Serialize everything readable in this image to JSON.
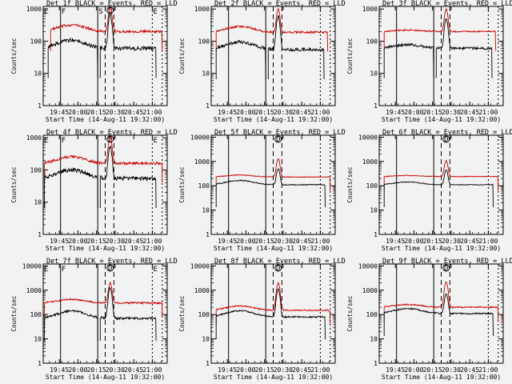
{
  "chart_data": [
    {
      "type": "line",
      "title": "Det 1f BLACK = Events, RED = LLD",
      "xlabel": "Start Time (14-Aug-11 19:32:00)",
      "ylabel": "Counts/sec",
      "yscale": "log",
      "ylim": [
        1,
        1200
      ],
      "yticks": [
        "1",
        "10",
        "100",
        "1000"
      ],
      "xticks": [
        "19:45",
        "20:00",
        "20:15",
        "20:30",
        "20:45",
        "21:00"
      ],
      "xlim": [
        "19:32",
        "21:12"
      ],
      "markers": [
        {
          "label": "E",
          "time": "19:32"
        },
        {
          "label": "F",
          "time": "19:46"
        },
        {
          "label": "S",
          "time": "20:16"
        },
        {
          "label": "",
          "time": "20:22"
        },
        {
          "label": "",
          "time": "20:29"
        },
        {
          "label": "E",
          "time": "21:00"
        },
        {
          "label": "",
          "time": "21:08"
        }
      ],
      "flare_label": "D",
      "flare_time": "20:26",
      "series": [
        {
          "color": "#cc0000",
          "base": 200,
          "bump": 1.6,
          "flare": 1100,
          "noise": 0.08,
          "segments": [
            [
              "19:38",
              "21:08"
            ]
          ]
        },
        {
          "color": "#000000",
          "base": 60,
          "bump": 1.8,
          "flare": 700,
          "noise": 0.12,
          "segments": [
            [
              "19:36",
              "20:16"
            ],
            [
              "20:18",
              "21:03"
            ]
          ]
        }
      ]
    },
    {
      "type": "line",
      "title": "Det 2f BLACK = Events, RED = LLD",
      "xlabel": "Start Time (14-Aug-11 19:32:00)",
      "ylabel": "Counts/sec",
      "yscale": "log",
      "ylim": [
        1,
        1200
      ],
      "yticks": [
        "1",
        "10",
        "100",
        "1000"
      ],
      "xticks": [
        "19:45",
        "20:00",
        "20:15",
        "20:30",
        "20:45",
        "21:00"
      ],
      "xlim": [
        "19:32",
        "21:12"
      ],
      "markers": [
        {
          "label": "",
          "time": "19:46"
        },
        {
          "label": "",
          "time": "20:16"
        },
        {
          "label": "",
          "time": "20:22"
        },
        {
          "label": "",
          "time": "20:29"
        },
        {
          "label": "",
          "time": "21:00"
        },
        {
          "label": "",
          "time": "21:08"
        }
      ],
      "flare_label": "",
      "flare_time": "20:26",
      "series": [
        {
          "color": "#cc0000",
          "base": 190,
          "bump": 1.5,
          "flare": 1000,
          "noise": 0.06,
          "segments": [
            [
              "19:36",
              "21:06"
            ]
          ]
        },
        {
          "color": "#000000",
          "base": 55,
          "bump": 1.7,
          "flare": 600,
          "noise": 0.1,
          "segments": [
            [
              "19:36",
              "20:16"
            ],
            [
              "20:18",
              "21:03"
            ]
          ]
        }
      ]
    },
    {
      "type": "line",
      "title": "Det 3f BLACK = Events, RED = LLD",
      "xlabel": "Start Time (14-Aug-11 19:32:00)",
      "ylabel": "Counts/sec",
      "yscale": "log",
      "ylim": [
        1,
        1200
      ],
      "yticks": [
        "1",
        "10",
        "100",
        "1000"
      ],
      "xticks": [
        "19:45",
        "20:00",
        "20:15",
        "20:30",
        "20:45",
        "21:00"
      ],
      "xlim": [
        "19:32",
        "21:12"
      ],
      "markers": [
        {
          "label": "",
          "time": "19:46"
        },
        {
          "label": "",
          "time": "20:16"
        },
        {
          "label": "",
          "time": "20:22"
        },
        {
          "label": "",
          "time": "20:29"
        },
        {
          "label": "",
          "time": "21:00"
        },
        {
          "label": "",
          "time": "21:08"
        }
      ],
      "flare_label": "",
      "flare_time": "20:26",
      "series": [
        {
          "color": "#cc0000",
          "base": 200,
          "bump": 1.1,
          "flare": 1000,
          "noise": 0.04,
          "segments": [
            [
              "19:36",
              "21:06"
            ]
          ]
        },
        {
          "color": "#000000",
          "base": 60,
          "bump": 1.3,
          "flare": 500,
          "noise": 0.08,
          "segments": [
            [
              "19:36",
              "20:16"
            ],
            [
              "20:18",
              "21:03"
            ]
          ]
        }
      ]
    },
    {
      "type": "line",
      "title": "Det 4f BLACK = Events, RED = LLD",
      "xlabel": "Start Time (14-Aug-11 19:32:00)",
      "ylabel": "Counts/sec",
      "yscale": "log",
      "ylim": [
        1,
        1200
      ],
      "yticks": [
        "1",
        "10",
        "100",
        "1000"
      ],
      "xticks": [
        "19:45",
        "20:00",
        "20:15",
        "20:30",
        "20:45",
        "21:00"
      ],
      "xlim": [
        "19:32",
        "21:12"
      ],
      "markers": [
        {
          "label": "E",
          "time": "19:32"
        },
        {
          "label": "F",
          "time": "19:46"
        },
        {
          "label": "",
          "time": "20:16"
        },
        {
          "label": "",
          "time": "20:22"
        },
        {
          "label": "",
          "time": "20:29"
        },
        {
          "label": "E",
          "time": "21:00"
        },
        {
          "label": "",
          "time": "21:08"
        }
      ],
      "flare_label": "D",
      "flare_time": "20:26",
      "series": [
        {
          "color": "#cc0000",
          "base": 160,
          "bump": 1.6,
          "flare": 1100,
          "noise": 0.08,
          "segments": [
            [
              "19:33",
              "21:08"
            ]
          ]
        },
        {
          "color": "#000000",
          "base": 55,
          "bump": 1.8,
          "flare": 550,
          "noise": 0.12,
          "segments": [
            [
              "19:33",
              "20:16"
            ],
            [
              "20:18",
              "21:03"
            ]
          ]
        }
      ]
    },
    {
      "type": "line",
      "title": "Det 5f BLACK = Events, RED = LLD",
      "xlabel": "Start Time (14-Aug-11 19:32:00)",
      "ylabel": "Counts/sec",
      "yscale": "log",
      "ylim": [
        1,
        12000
      ],
      "yticks": [
        "1",
        "10",
        "100",
        "1000",
        "10000"
      ],
      "xticks": [
        "19:45",
        "20:00",
        "20:15",
        "20:30",
        "20:45",
        "21:00"
      ],
      "xlim": [
        "19:32",
        "21:12"
      ],
      "markers": [
        {
          "label": "",
          "time": "19:46"
        },
        {
          "label": "",
          "time": "20:16"
        },
        {
          "label": "",
          "time": "20:22"
        },
        {
          "label": "",
          "time": "20:29"
        },
        {
          "label": "",
          "time": "21:00"
        },
        {
          "label": "",
          "time": "21:08"
        }
      ],
      "flare_label": "D",
      "flare_time": "20:26",
      "series": [
        {
          "color": "#cc0000",
          "base": 230,
          "bump": 1.2,
          "flare": 1300,
          "noise": 0.03,
          "segments": [
            [
              "19:36",
              "21:08"
            ]
          ]
        },
        {
          "color": "#000000",
          "base": 110,
          "bump": 1.5,
          "flare": 500,
          "noise": 0.04,
          "segments": [
            [
              "19:36",
              "21:04"
            ]
          ]
        }
      ]
    },
    {
      "type": "line",
      "title": "Det 6f BLACK = Events, RED = LLD",
      "xlabel": "Start Time (14-Aug-11 19:32:00)",
      "ylabel": "Counts/sec",
      "yscale": "log",
      "ylim": [
        1,
        12000
      ],
      "yticks": [
        "1",
        "10",
        "100",
        "1000",
        "10000"
      ],
      "xticks": [
        "19:45",
        "20:00",
        "20:15",
        "20:30",
        "20:45",
        "21:00"
      ],
      "xlim": [
        "19:32",
        "21:12"
      ],
      "markers": [
        {
          "label": "",
          "time": "19:46"
        },
        {
          "label": "",
          "time": "20:16"
        },
        {
          "label": "",
          "time": "20:22"
        },
        {
          "label": "",
          "time": "20:29"
        },
        {
          "label": "",
          "time": "21:00"
        },
        {
          "label": "",
          "time": "21:08"
        }
      ],
      "flare_label": "D",
      "flare_time": "20:26",
      "series": [
        {
          "color": "#cc0000",
          "base": 240,
          "bump": 1.1,
          "flare": 1100,
          "noise": 0.03,
          "segments": [
            [
              "19:36",
              "21:08"
            ]
          ]
        },
        {
          "color": "#000000",
          "base": 110,
          "bump": 1.3,
          "flare": 450,
          "noise": 0.03,
          "segments": [
            [
              "19:36",
              "21:04"
            ]
          ]
        }
      ]
    },
    {
      "type": "line",
      "title": "Det 7f BLACK = Events, RED = LLD",
      "xlabel": "Start Time (14-Aug-11 19:32:00)",
      "ylabel": "Counts/sec",
      "yscale": "log",
      "ylim": [
        1,
        12000
      ],
      "yticks": [
        "1",
        "10",
        "100",
        "1000",
        "10000"
      ],
      "xticks": [
        "19:45",
        "20:00",
        "20:15",
        "20:30",
        "20:45",
        "21:00"
      ],
      "xlim": [
        "19:32",
        "21:12"
      ],
      "markers": [
        {
          "label": "E",
          "time": "19:32"
        },
        {
          "label": "F",
          "time": "19:46"
        },
        {
          "label": "",
          "time": "20:16"
        },
        {
          "label": "",
          "time": "20:22"
        },
        {
          "label": "",
          "time": "20:29"
        },
        {
          "label": "E",
          "time": "21:00"
        },
        {
          "label": "",
          "time": "21:08"
        }
      ],
      "flare_label": "D",
      "flare_time": "20:26",
      "series": [
        {
          "color": "#cc0000",
          "base": 300,
          "bump": 1.4,
          "flare": 2000,
          "noise": 0.07,
          "segments": [
            [
              "19:33",
              "21:08"
            ]
          ]
        },
        {
          "color": "#000000",
          "base": 70,
          "bump": 2.0,
          "flare": 1200,
          "noise": 0.1,
          "segments": [
            [
              "19:33",
              "20:16"
            ],
            [
              "20:18",
              "21:03"
            ]
          ]
        }
      ]
    },
    {
      "type": "line",
      "title": "Det 8f BLACK = Events, RED = LLD",
      "xlabel": "Start Time (14-Aug-11 19:32:00)",
      "ylabel": "Counts/sec",
      "yscale": "log",
      "ylim": [
        1,
        12000
      ],
      "yticks": [
        "1",
        "10",
        "100",
        "1000",
        "10000"
      ],
      "xticks": [
        "19:45",
        "20:00",
        "20:15",
        "20:30",
        "20:45",
        "21:00"
      ],
      "xlim": [
        "19:32",
        "21:12"
      ],
      "markers": [
        {
          "label": "",
          "time": "19:46"
        },
        {
          "label": "",
          "time": "20:16"
        },
        {
          "label": "",
          "time": "20:22"
        },
        {
          "label": "",
          "time": "20:29"
        },
        {
          "label": "",
          "time": "21:00"
        },
        {
          "label": "",
          "time": "21:08"
        }
      ],
      "flare_label": "D",
      "flare_time": "20:26",
      "series": [
        {
          "color": "#cc0000",
          "base": 150,
          "bump": 1.5,
          "flare": 2000,
          "noise": 0.05,
          "segments": [
            [
              "19:36",
              "21:08"
            ]
          ]
        },
        {
          "color": "#000000",
          "base": 80,
          "bump": 1.8,
          "flare": 1100,
          "noise": 0.06,
          "segments": [
            [
              "19:36",
              "21:04"
            ]
          ]
        }
      ]
    },
    {
      "type": "line",
      "title": "Det 9f BLACK = Events, RED = LLD",
      "xlabel": "Start Time (14-Aug-11 19:32:00)",
      "ylabel": "Counts/sec",
      "yscale": "log",
      "ylim": [
        1,
        12000
      ],
      "yticks": [
        "1",
        "10",
        "100",
        "1000",
        "10000"
      ],
      "xticks": [
        "19:45",
        "20:00",
        "20:15",
        "20:30",
        "20:45",
        "21:00"
      ],
      "xlim": [
        "19:32",
        "21:12"
      ],
      "markers": [
        {
          "label": "",
          "time": "19:46"
        },
        {
          "label": "",
          "time": "20:16"
        },
        {
          "label": "",
          "time": "20:22"
        },
        {
          "label": "",
          "time": "20:29"
        },
        {
          "label": "",
          "time": "21:00"
        },
        {
          "label": "",
          "time": "21:08"
        }
      ],
      "flare_label": "D",
      "flare_time": "20:26",
      "series": [
        {
          "color": "#cc0000",
          "base": 200,
          "bump": 1.3,
          "flare": 2200,
          "noise": 0.05,
          "segments": [
            [
              "19:36",
              "21:08"
            ]
          ]
        },
        {
          "color": "#000000",
          "base": 110,
          "bump": 1.6,
          "flare": 700,
          "noise": 0.06,
          "segments": [
            [
              "19:36",
              "21:04"
            ]
          ]
        }
      ]
    }
  ]
}
